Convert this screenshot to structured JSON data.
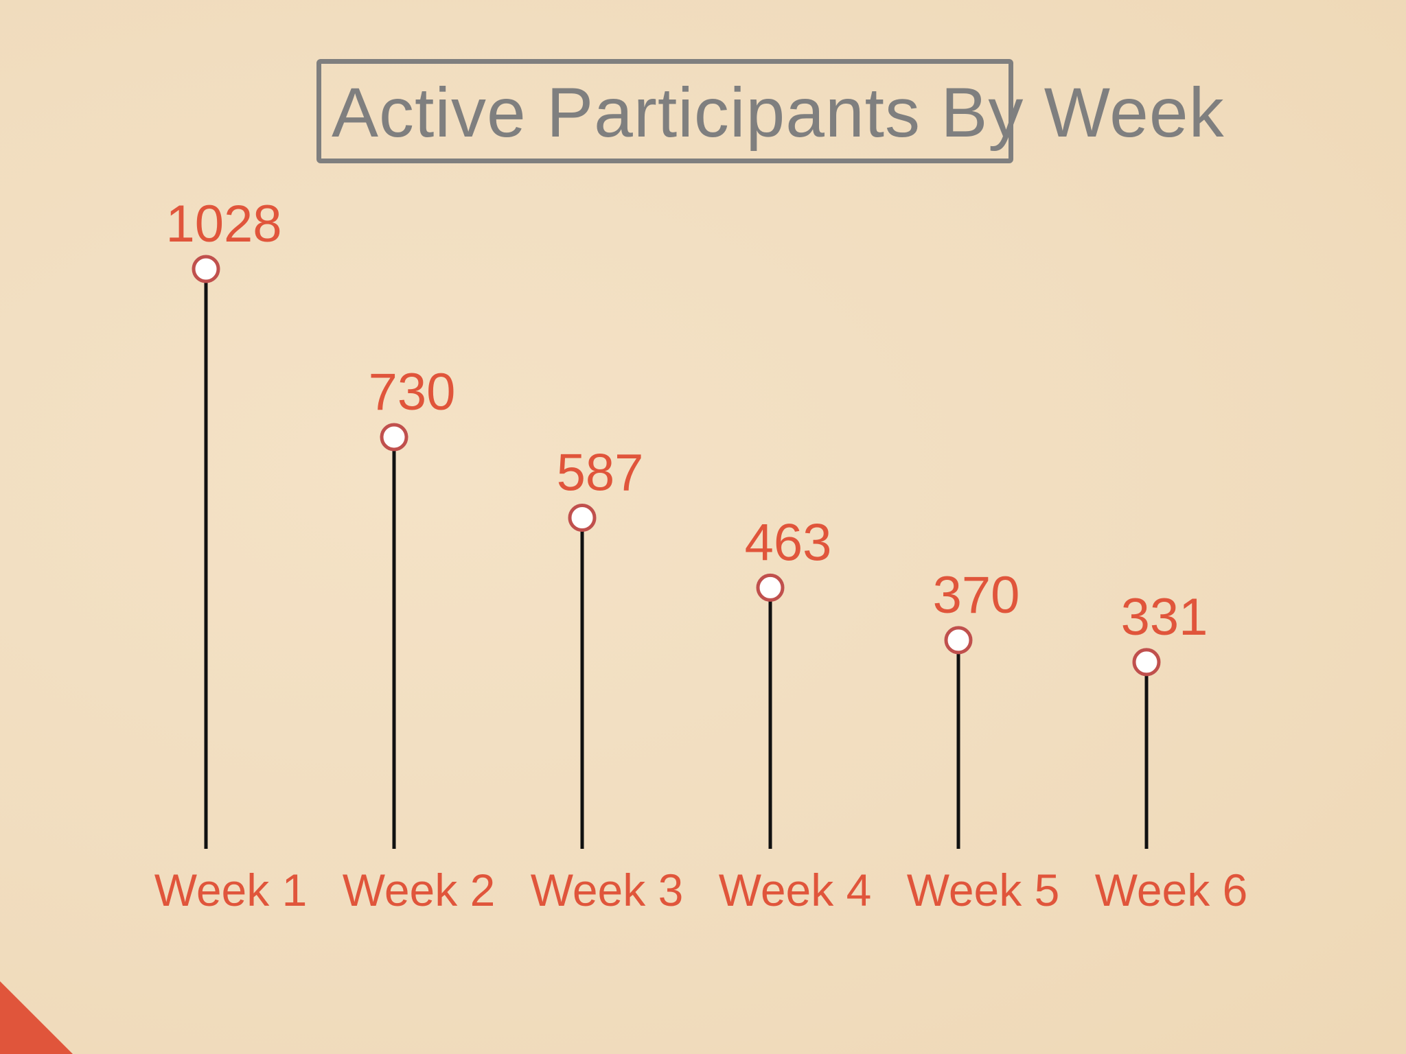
{
  "slide": {
    "title": "Active Participants By Week",
    "colors": {
      "background": "#f2dfc2",
      "title_text": "#7f7f7f",
      "title_border": "#7f7f7f",
      "label_text": "#e0553b",
      "marker_stroke": "#c0504d",
      "marker_fill": "#ffffff",
      "stem": "#111111",
      "corner_accent": "#e0553b"
    }
  },
  "chart_data": {
    "type": "lollipop",
    "title": "Active Participants By Week",
    "categories": [
      "Week 1",
      "Week 2",
      "Week 3",
      "Week 4",
      "Week 5",
      "Week 6"
    ],
    "values": [
      1028,
      730,
      587,
      463,
      370,
      331
    ],
    "data_labels": [
      "1028",
      "730",
      "587",
      "463",
      "370",
      "331"
    ],
    "xlabel": "",
    "ylabel": "",
    "ylim": [
      0,
      1180
    ],
    "grid": false,
    "legend": "none"
  }
}
